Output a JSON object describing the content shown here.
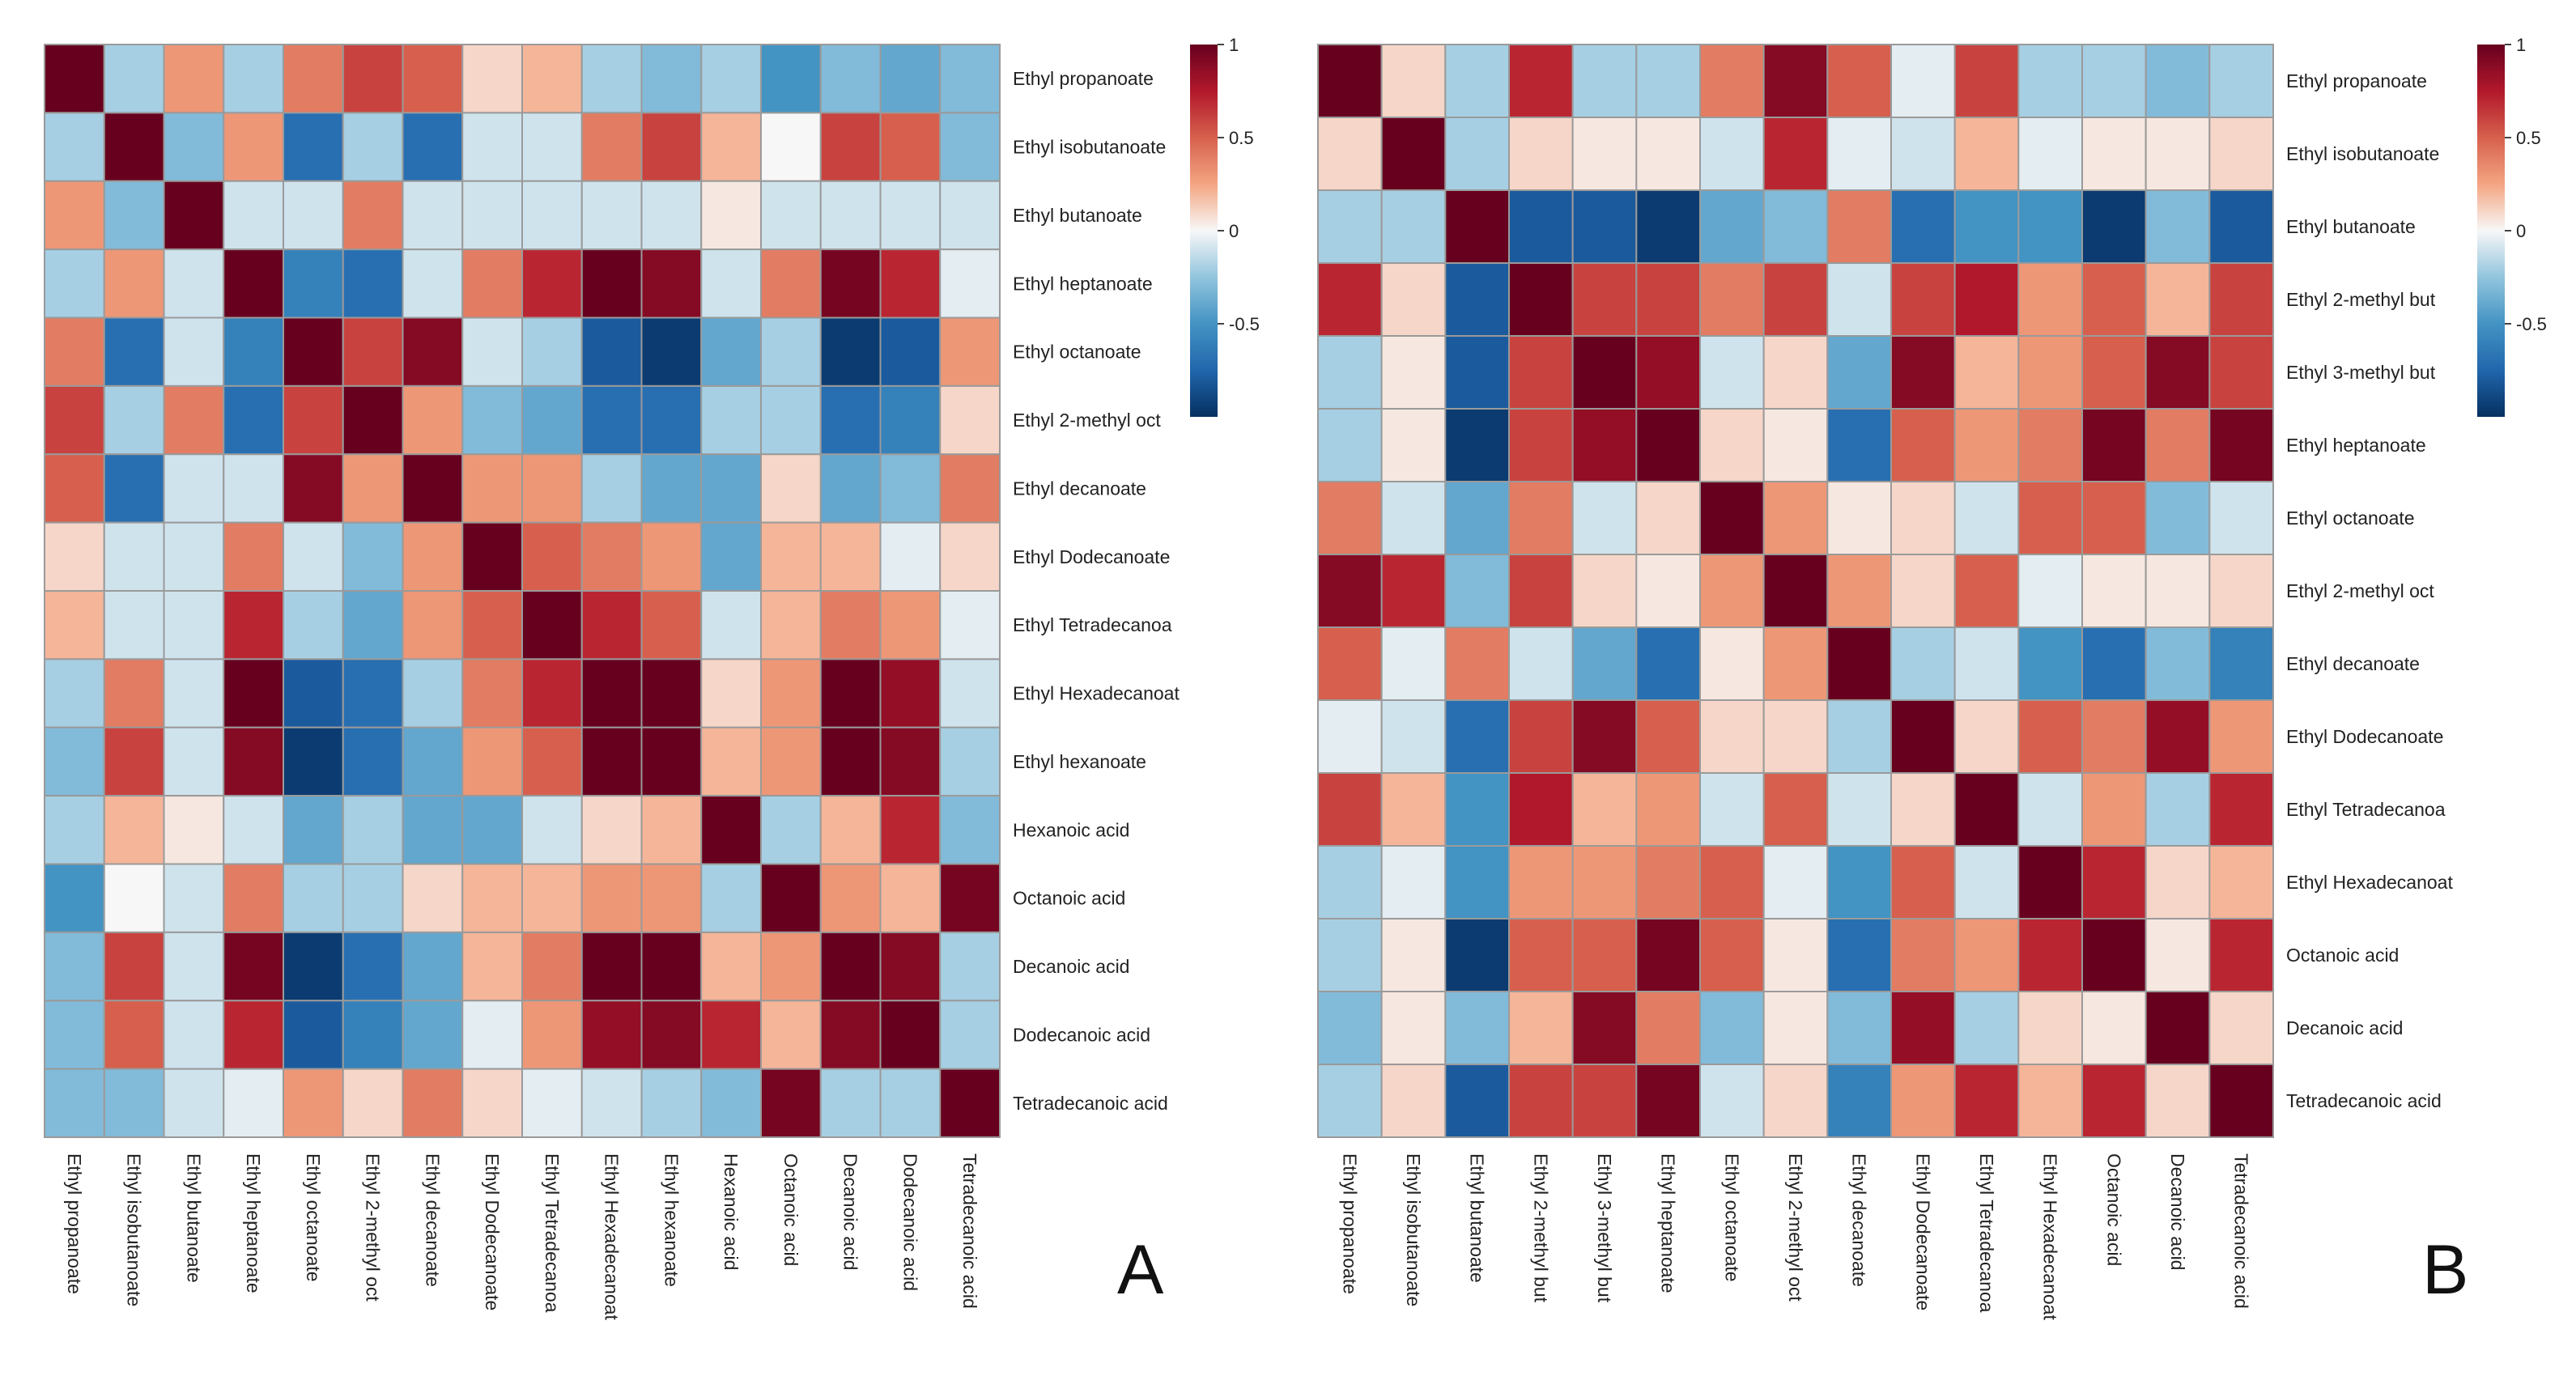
{
  "figure": {
    "panel_labels": [
      "A",
      "B"
    ]
  },
  "chart_data": [
    {
      "type": "heatmap",
      "panel": "A",
      "title": "",
      "colorbar": {
        "ticks": [
          "1",
          "0.5",
          "0",
          "-0.5"
        ],
        "range": [
          -1,
          1
        ]
      },
      "labels": [
        "Ethyl propanoate",
        "Ethyl isobutanoate",
        "Ethyl butanoate",
        "Ethyl heptanoate",
        "Ethyl octanoate",
        "Ethyl 2-methyl oct",
        "Ethyl decanoate",
        "Ethyl Dodecanoate",
        "Ethyl Tetradecanoa",
        "Ethyl Hexadecanoat",
        "Ethyl hexanoate",
        "Hexanoic acid",
        "Octanoic acid",
        "Decanoic acid",
        "Dodecanoic acid",
        "Tetradecanoic acid"
      ],
      "matrix": [
        [
          1,
          -0.2,
          0.3,
          -0.2,
          0.4,
          0.6,
          0.5,
          0.1,
          0.2,
          -0.2,
          -0.3,
          -0.2,
          -0.5,
          -0.3,
          -0.4,
          -0.3
        ],
        [
          -0.2,
          1,
          -0.3,
          0.3,
          -0.7,
          -0.2,
          -0.7,
          -0.1,
          -0.1,
          0.4,
          0.6,
          0.2,
          0,
          0.6,
          0.5,
          -0.3
        ],
        [
          0.3,
          -0.3,
          1,
          -0.1,
          -0.1,
          0.4,
          -0.1,
          -0.1,
          -0.1,
          -0.1,
          -0.1,
          0.05,
          -0.1,
          -0.1,
          -0.1,
          -0.1
        ],
        [
          -0.2,
          0.3,
          -0.1,
          1,
          -0.6,
          -0.7,
          -0.1,
          0.4,
          0.7,
          1,
          0.9,
          -0.1,
          0.4,
          0.95,
          0.7,
          -0.05
        ],
        [
          0.4,
          -0.7,
          -0.1,
          -0.6,
          1,
          0.6,
          0.9,
          -0.1,
          -0.2,
          -0.8,
          -0.95,
          -0.4,
          -0.2,
          -0.95,
          -0.8,
          0.3
        ],
        [
          0.6,
          -0.2,
          0.4,
          -0.7,
          0.6,
          1,
          0.3,
          -0.3,
          -0.4,
          -0.7,
          -0.7,
          -0.2,
          -0.2,
          -0.7,
          -0.6,
          0.1
        ],
        [
          0.5,
          -0.7,
          -0.1,
          -0.1,
          0.9,
          0.3,
          1,
          0.3,
          0.3,
          -0.2,
          -0.4,
          -0.4,
          0.1,
          -0.4,
          -0.3,
          0.4
        ],
        [
          0.1,
          -0.1,
          -0.1,
          0.4,
          -0.1,
          -0.3,
          0.3,
          1,
          0.5,
          0.4,
          0.3,
          -0.4,
          0.2,
          0.2,
          -0.05,
          0.1
        ],
        [
          0.2,
          -0.1,
          -0.1,
          0.7,
          -0.2,
          -0.4,
          0.3,
          0.5,
          1,
          0.7,
          0.5,
          -0.1,
          0.2,
          0.4,
          0.3,
          -0.05
        ],
        [
          -0.2,
          0.4,
          -0.1,
          1,
          -0.8,
          -0.7,
          -0.2,
          0.4,
          0.7,
          1,
          1,
          0.1,
          0.3,
          1,
          0.85,
          -0.1
        ],
        [
          -0.3,
          0.6,
          -0.1,
          0.9,
          -0.95,
          -0.7,
          -0.4,
          0.3,
          0.5,
          1,
          1,
          0.2,
          0.3,
          1,
          0.9,
          -0.2
        ],
        [
          -0.2,
          0.2,
          0.05,
          -0.1,
          -0.4,
          -0.2,
          -0.4,
          -0.4,
          -0.1,
          0.1,
          0.2,
          1,
          -0.2,
          0.2,
          0.7,
          -0.3
        ],
        [
          -0.5,
          0,
          -0.1,
          0.4,
          -0.2,
          -0.2,
          0.1,
          0.2,
          0.2,
          0.3,
          0.3,
          -0.2,
          1,
          0.3,
          0.2,
          0.95
        ],
        [
          -0.3,
          0.6,
          -0.1,
          0.95,
          -0.95,
          -0.7,
          -0.4,
          0.2,
          0.4,
          1,
          1,
          0.2,
          0.3,
          1,
          0.9,
          -0.2
        ],
        [
          -0.3,
          0.5,
          -0.1,
          0.7,
          -0.8,
          -0.6,
          -0.4,
          -0.05,
          0.3,
          0.85,
          0.9,
          0.7,
          0.2,
          0.9,
          1,
          -0.2
        ],
        [
          -0.3,
          -0.3,
          -0.1,
          -0.05,
          0.3,
          0.1,
          0.4,
          0.1,
          -0.05,
          -0.1,
          -0.2,
          -0.3,
          0.95,
          -0.2,
          -0.2,
          1
        ]
      ]
    },
    {
      "type": "heatmap",
      "panel": "B",
      "title": "",
      "colorbar": {
        "ticks": [
          "1",
          "0.5",
          "0",
          "-0.5"
        ],
        "range": [
          -1,
          1
        ]
      },
      "labels": [
        "Ethyl propanoate",
        "Ethyl isobutanoate",
        "Ethyl butanoate",
        "Ethyl 2-methyl but",
        "Ethyl 3-methyl but",
        "Ethyl heptanoate",
        "Ethyl octanoate",
        "Ethyl 2-methyl oct",
        "Ethyl decanoate",
        "Ethyl Dodecanoate",
        "Ethyl Tetradecanoa",
        "Ethyl Hexadecanoat",
        "Octanoic acid",
        "Decanoic acid",
        "Tetradecanoic acid"
      ],
      "matrix": [
        [
          1,
          0.1,
          -0.2,
          0.7,
          -0.2,
          -0.2,
          0.4,
          0.9,
          0.5,
          -0.05,
          0.6,
          -0.2,
          -0.2,
          -0.3,
          -0.2
        ],
        [
          0.1,
          1,
          -0.2,
          0.1,
          0.05,
          0.05,
          -0.1,
          0.7,
          -0.05,
          -0.1,
          0.2,
          -0.05,
          0.05,
          0.05,
          0.1
        ],
        [
          -0.2,
          -0.2,
          1,
          -0.8,
          -0.8,
          -0.95,
          -0.4,
          -0.3,
          0.4,
          -0.7,
          -0.5,
          -0.5,
          -0.95,
          -0.3,
          -0.8
        ],
        [
          0.7,
          0.1,
          -0.8,
          1,
          0.6,
          0.6,
          0.4,
          0.6,
          -0.1,
          0.6,
          0.75,
          0.3,
          0.5,
          0.2,
          0.6
        ],
        [
          -0.2,
          0.05,
          -0.8,
          0.6,
          1,
          0.85,
          -0.1,
          0.1,
          -0.4,
          0.9,
          0.2,
          0.3,
          0.5,
          0.9,
          0.6
        ],
        [
          -0.2,
          0.05,
          -0.95,
          0.6,
          0.85,
          1,
          0.1,
          0.05,
          -0.7,
          0.5,
          0.3,
          0.4,
          0.95,
          0.4,
          0.95
        ],
        [
          0.4,
          -0.1,
          -0.4,
          0.4,
          -0.1,
          0.1,
          1,
          0.3,
          0.05,
          0.1,
          -0.1,
          0.5,
          0.5,
          -0.3,
          -0.1
        ],
        [
          0.9,
          0.7,
          -0.3,
          0.6,
          0.1,
          0.05,
          0.3,
          1,
          0.3,
          0.1,
          0.5,
          -0.05,
          0.05,
          0.05,
          0.1
        ],
        [
          0.5,
          -0.05,
          0.4,
          -0.1,
          -0.4,
          -0.7,
          0.05,
          0.3,
          1,
          -0.2,
          -0.1,
          -0.5,
          -0.7,
          -0.3,
          -0.6
        ],
        [
          -0.05,
          -0.1,
          -0.7,
          0.6,
          0.9,
          0.5,
          0.1,
          0.1,
          -0.2,
          1,
          0.1,
          0.5,
          0.4,
          0.85,
          0.3
        ],
        [
          0.6,
          0.2,
          -0.5,
          0.75,
          0.2,
          0.3,
          -0.1,
          0.5,
          -0.1,
          0.1,
          1,
          -0.1,
          0.3,
          -0.2,
          0.7
        ],
        [
          -0.2,
          -0.05,
          -0.5,
          0.3,
          0.3,
          0.4,
          0.5,
          -0.05,
          -0.5,
          0.5,
          -0.1,
          1,
          0.7,
          0.1,
          0.2
        ],
        [
          -0.2,
          0.05,
          -0.95,
          0.5,
          0.5,
          0.95,
          0.5,
          0.05,
          -0.7,
          0.4,
          0.3,
          0.7,
          1,
          0.05,
          0.7
        ],
        [
          -0.3,
          0.05,
          -0.3,
          0.2,
          0.9,
          0.4,
          -0.3,
          0.05,
          -0.3,
          0.85,
          -0.2,
          0.1,
          0.05,
          1,
          0.1
        ],
        [
          -0.2,
          0.1,
          -0.8,
          0.6,
          0.6,
          0.95,
          -0.1,
          0.1,
          -0.6,
          0.3,
          0.7,
          0.2,
          0.7,
          0.1,
          1
        ]
      ]
    }
  ]
}
